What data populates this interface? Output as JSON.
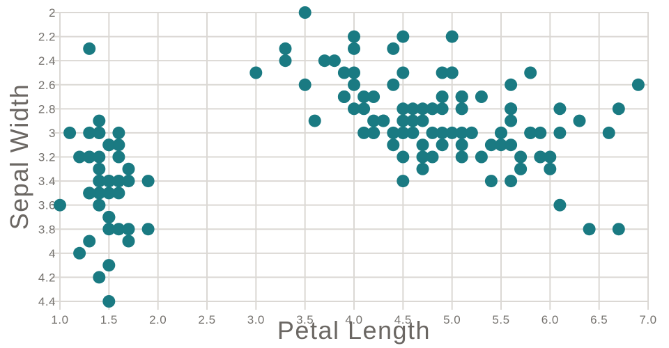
{
  "chart_data": {
    "type": "scatter",
    "title": "",
    "xlabel": "Petal Length",
    "ylabel": "Sepal Width",
    "xlim": [
      1.0,
      7.0
    ],
    "ylim": [
      2.0,
      4.4
    ],
    "y_axis_reversed": true,
    "grid": true,
    "legend": "none",
    "xtick_values": [
      1.0,
      1.5,
      2.0,
      2.5,
      3.0,
      3.5,
      4.0,
      4.5,
      5.0,
      5.5,
      6.0,
      6.5,
      7.0
    ],
    "xtick_labels": [
      "1.0",
      "1.5",
      "2.0",
      "2.5",
      "3.0",
      "3.5",
      "4.0",
      "4.5",
      "5.0",
      "5.5",
      "6.0",
      "6.5",
      "7.0"
    ],
    "ytick_values": [
      2.0,
      2.2,
      2.4,
      2.6,
      2.8,
      3.0,
      3.2,
      3.4,
      3.6,
      3.8,
      4.0,
      4.2,
      4.4
    ],
    "ytick_labels": [
      "2",
      "2.2",
      "2.4",
      "2.6",
      "2.8",
      "3",
      "3.2",
      "3.4",
      "3.6",
      "3.8",
      "4",
      "4.2",
      "4.4"
    ],
    "marker_color": "#1a7a82",
    "grid_color": "#dbd8d4",
    "tick_label_color": "#76736f",
    "axis_title_color": "#6b6763",
    "background_color": "#ffffff",
    "points": [
      [
        1.4,
        3.5
      ],
      [
        1.4,
        3.0
      ],
      [
        1.3,
        3.2
      ],
      [
        1.5,
        3.1
      ],
      [
        1.4,
        3.6
      ],
      [
        1.7,
        3.9
      ],
      [
        1.4,
        3.4
      ],
      [
        1.5,
        3.4
      ],
      [
        1.4,
        2.9
      ],
      [
        1.5,
        3.1
      ],
      [
        1.5,
        3.7
      ],
      [
        1.6,
        3.4
      ],
      [
        1.4,
        3.0
      ],
      [
        1.1,
        3.0
      ],
      [
        1.2,
        4.0
      ],
      [
        1.5,
        4.4
      ],
      [
        1.3,
        3.9
      ],
      [
        1.4,
        3.5
      ],
      [
        1.7,
        3.8
      ],
      [
        1.5,
        3.8
      ],
      [
        1.7,
        3.4
      ],
      [
        1.5,
        3.7
      ],
      [
        1.0,
        3.6
      ],
      [
        1.7,
        3.3
      ],
      [
        1.9,
        3.4
      ],
      [
        1.6,
        3.0
      ],
      [
        1.6,
        3.4
      ],
      [
        1.5,
        3.5
      ],
      [
        1.4,
        3.4
      ],
      [
        1.6,
        3.2
      ],
      [
        1.6,
        3.1
      ],
      [
        1.5,
        3.4
      ],
      [
        1.5,
        4.1
      ],
      [
        1.4,
        4.2
      ],
      [
        1.5,
        3.1
      ],
      [
        1.2,
        3.2
      ],
      [
        1.3,
        3.5
      ],
      [
        1.4,
        3.6
      ],
      [
        1.3,
        3.0
      ],
      [
        1.5,
        3.4
      ],
      [
        1.3,
        3.5
      ],
      [
        1.3,
        2.3
      ],
      [
        1.3,
        3.2
      ],
      [
        1.6,
        3.5
      ],
      [
        1.9,
        3.8
      ],
      [
        1.4,
        3.0
      ],
      [
        1.6,
        3.8
      ],
      [
        1.4,
        3.2
      ],
      [
        1.5,
        3.7
      ],
      [
        1.4,
        3.3
      ],
      [
        4.7,
        3.2
      ],
      [
        4.5,
        3.2
      ],
      [
        4.9,
        3.1
      ],
      [
        4.0,
        2.3
      ],
      [
        4.6,
        2.8
      ],
      [
        4.5,
        2.8
      ],
      [
        4.7,
        3.3
      ],
      [
        3.3,
        2.4
      ],
      [
        4.6,
        2.9
      ],
      [
        3.9,
        2.7
      ],
      [
        3.5,
        2.0
      ],
      [
        4.2,
        3.0
      ],
      [
        4.0,
        2.2
      ],
      [
        4.7,
        2.9
      ],
      [
        3.6,
        2.9
      ],
      [
        4.4,
        3.1
      ],
      [
        4.5,
        3.0
      ],
      [
        4.1,
        2.7
      ],
      [
        4.5,
        2.2
      ],
      [
        3.9,
        2.5
      ],
      [
        4.8,
        3.2
      ],
      [
        4.0,
        2.8
      ],
      [
        4.9,
        2.5
      ],
      [
        4.7,
        2.8
      ],
      [
        4.3,
        2.9
      ],
      [
        4.4,
        3.0
      ],
      [
        4.8,
        2.8
      ],
      [
        5.0,
        3.0
      ],
      [
        4.5,
        2.9
      ],
      [
        3.5,
        2.6
      ],
      [
        3.8,
        2.4
      ],
      [
        3.7,
        2.4
      ],
      [
        3.9,
        2.7
      ],
      [
        5.1,
        2.7
      ],
      [
        4.5,
        3.0
      ],
      [
        4.5,
        3.4
      ],
      [
        4.7,
        3.1
      ],
      [
        4.4,
        2.3
      ],
      [
        4.1,
        3.0
      ],
      [
        4.0,
        2.5
      ],
      [
        4.4,
        2.6
      ],
      [
        4.6,
        3.0
      ],
      [
        4.0,
        2.6
      ],
      [
        3.3,
        2.3
      ],
      [
        4.2,
        2.7
      ],
      [
        4.2,
        3.0
      ],
      [
        4.2,
        2.9
      ],
      [
        4.3,
        2.9
      ],
      [
        3.0,
        2.5
      ],
      [
        4.1,
        2.8
      ],
      [
        6.0,
        3.3
      ],
      [
        5.1,
        2.7
      ],
      [
        5.9,
        3.0
      ],
      [
        5.6,
        2.9
      ],
      [
        5.8,
        3.0
      ],
      [
        6.6,
        3.0
      ],
      [
        4.5,
        2.5
      ],
      [
        6.3,
        2.9
      ],
      [
        5.8,
        2.5
      ],
      [
        6.1,
        3.6
      ],
      [
        5.1,
        3.2
      ],
      [
        5.3,
        2.7
      ],
      [
        5.5,
        3.0
      ],
      [
        5.0,
        2.5
      ],
      [
        5.1,
        2.8
      ],
      [
        5.3,
        3.2
      ],
      [
        5.5,
        3.0
      ],
      [
        6.7,
        3.8
      ],
      [
        6.9,
        2.6
      ],
      [
        5.0,
        2.2
      ],
      [
        5.7,
        3.2
      ],
      [
        4.9,
        2.8
      ],
      [
        6.7,
        2.8
      ],
      [
        4.9,
        2.7
      ],
      [
        5.7,
        3.3
      ],
      [
        6.0,
        3.2
      ],
      [
        4.8,
        2.8
      ],
      [
        4.9,
        3.0
      ],
      [
        5.6,
        2.8
      ],
      [
        5.8,
        3.0
      ],
      [
        6.1,
        2.8
      ],
      [
        6.4,
        3.8
      ],
      [
        5.6,
        2.8
      ],
      [
        5.1,
        2.8
      ],
      [
        5.6,
        2.6
      ],
      [
        6.1,
        3.0
      ],
      [
        5.6,
        3.4
      ],
      [
        5.5,
        3.1
      ],
      [
        4.8,
        3.0
      ],
      [
        5.4,
        3.1
      ],
      [
        5.6,
        3.1
      ],
      [
        5.1,
        3.1
      ],
      [
        5.1,
        2.7
      ],
      [
        5.9,
        3.2
      ],
      [
        5.7,
        3.3
      ],
      [
        5.2,
        3.0
      ],
      [
        5.0,
        2.5
      ],
      [
        5.2,
        3.0
      ],
      [
        5.4,
        3.4
      ],
      [
        5.1,
        3.0
      ]
    ]
  }
}
